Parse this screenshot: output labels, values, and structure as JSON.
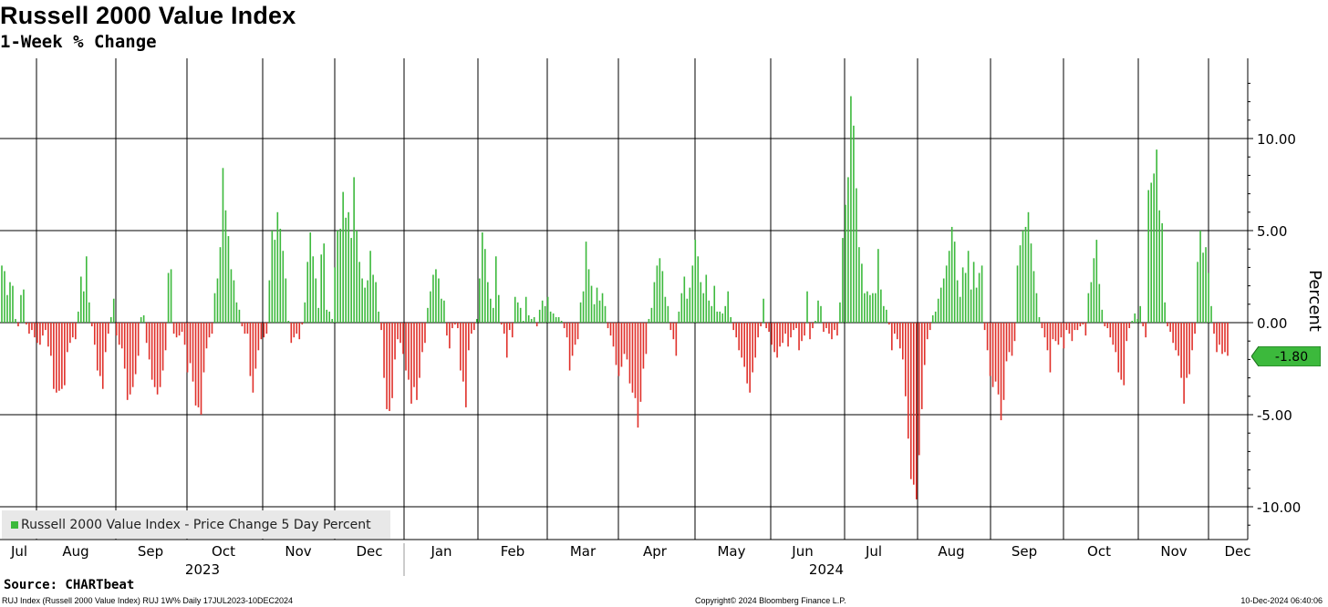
{
  "title": "Russell 2000 Value Index",
  "subtitle": "1-Week % Change",
  "source": "Source: CHARTbeat",
  "footer": {
    "left": "RUJ Index (Russell 2000 Value Index) RUJ 1W%  Daily 17JUL2023-10DEC2024",
    "middle": "Copyright© 2024 Bloomberg Finance L.P.",
    "right": "10-Dec-2024 06:40:06"
  },
  "legend_label": "Russell 2000 Value Index - Price Change 5 Day Percent",
  "last_value_label": "-1.80",
  "colors": {
    "positive": "#3cb93c",
    "negative": "#e0302a",
    "badge": "#3cb93c"
  },
  "chart_data": {
    "type": "bar",
    "ylabel": "Percent",
    "ylim": [
      -11.5,
      14
    ],
    "y_ticks": [
      "10.00",
      "5.00",
      "0.00",
      "-5.00",
      "-10.00"
    ],
    "grid": true,
    "legend_position": "bottom-left",
    "month_labels": [
      "Jul",
      "Aug",
      "Sep",
      "Oct",
      "Nov",
      "Dec",
      "Jan",
      "Feb",
      "Mar",
      "Apr",
      "May",
      "Jun",
      "Jul",
      "Aug",
      "Sep",
      "Oct",
      "Nov",
      "Dec"
    ],
    "year_labels": [
      "2023",
      "2024"
    ],
    "last_value": -1.8,
    "series": [
      {
        "name": "Russell 2000 Value Index - Price Change 5 Day Percent",
        "values": [
          3.1,
          2.8,
          1.5,
          2.2,
          2.0,
          0.2,
          -0.2,
          1.5,
          1.8,
          -0.1,
          -0.6,
          -0.4,
          -0.8,
          -1.1,
          -1.2,
          -0.7,
          -0.4,
          -1.3,
          -1.8,
          -3.6,
          -3.8,
          -3.7,
          -3.6,
          -3.4,
          -1.6,
          -1.1,
          -0.8,
          -0.9,
          0.6,
          2.5,
          1.7,
          3.6,
          1.1,
          -0.2,
          -1.2,
          -2.6,
          -2.9,
          -3.6,
          -1.6,
          -0.6,
          0.3,
          1.3,
          -0.7,
          -1.2,
          -1.4,
          -2.5,
          -4.2,
          -3.9,
          -3.5,
          -2.8,
          -1.8,
          0.3,
          0.4,
          -1.1,
          -2.0,
          -3.1,
          -3.5,
          -3.9,
          -3.5,
          -2.6,
          -1.5,
          2.7,
          2.9,
          -0.6,
          -0.8,
          -0.7,
          -0.5,
          -1.2,
          -2.7,
          -2.2,
          -3.2,
          -4.5,
          -4.6,
          -5.0,
          -2.7,
          -1.4,
          -0.8,
          -0.6,
          1.6,
          2.4,
          4.1,
          8.4,
          6.1,
          4.7,
          2.9,
          2.3,
          1.1,
          0.7,
          -0.2,
          -0.6,
          -0.6,
          -2.9,
          -3.8,
          -2.5,
          -1.5,
          -0.9,
          -0.8,
          -0.6,
          2.3,
          5.0,
          4.5,
          6.0,
          5.1,
          3.9,
          2.4,
          0.1,
          -1.1,
          -0.8,
          -0.6,
          -0.9,
          -0.1,
          1.1,
          3.3,
          4.9,
          3.6,
          2.4,
          0.8,
          3.7,
          4.3,
          0.7,
          0.6,
          0.2,
          3.0,
          5.0,
          5.1,
          7.1,
          5.7,
          6.0,
          4.6,
          7.9,
          5.0,
          3.3,
          2.4,
          1.9,
          2.3,
          3.9,
          2.6,
          2.2,
          0.6,
          -0.4,
          -3.0,
          -4.7,
          -4.8,
          -4.1,
          -2.0,
          -0.9,
          -1.1,
          -1.7,
          -2.6,
          -3.1,
          -4.4,
          -3.5,
          -4.2,
          -3.0,
          -1.6,
          -1.1,
          0.8,
          1.7,
          2.6,
          2.9,
          2.4,
          1.3,
          1.2,
          -0.7,
          -1.4,
          -0.3,
          -0.1,
          -0.3,
          -2.6,
          -3.2,
          -4.6,
          -1.5,
          -0.6,
          -0.4,
          0.2,
          2.4,
          4.9,
          4.0,
          2.2,
          1.3,
          0.8,
          3.6,
          1.5,
          -0.1,
          -0.6,
          -1.9,
          -0.4,
          -0.8,
          1.4,
          1.1,
          0.8,
          0.1,
          1.4,
          0.4,
          0.2,
          0.3,
          -0.2,
          0.7,
          1.2,
          0.9,
          1.4,
          0.6,
          0.5,
          0.3,
          0.3,
          0.1,
          -0.3,
          -0.8,
          -2.6,
          -1.8,
          -1.2,
          -0.9,
          1.1,
          1.7,
          4.4,
          2.9,
          2.0,
          1.0,
          1.9,
          1.2,
          1.6,
          0.9,
          -0.3,
          -0.7,
          -1.3,
          -2.3,
          -2.9,
          -2.4,
          -1.7,
          -2.0,
          -3.3,
          -3.8,
          -4.1,
          -5.7,
          -4.3,
          -2.5,
          -1.7,
          0.2,
          0.8,
          2.2,
          3.1,
          3.5,
          2.8,
          1.4,
          0.9,
          -0.4,
          -0.9,
          -1.8,
          0.6,
          1.6,
          2.5,
          1.3,
          1.9,
          3.1,
          4.5,
          3.6,
          2.2,
          1.6,
          2.6,
          1.2,
          0.9,
          2.0,
          0.6,
          0.6,
          0.5,
          0.9,
          1.7,
          0.3,
          -0.4,
          -0.8,
          -1.5,
          -1.9,
          -2.4,
          -3.3,
          -3.8,
          -2.7,
          -1.9,
          -0.8,
          -0.2,
          1.3,
          -0.3,
          -0.5,
          -1.2,
          -1.6,
          -1.9,
          -1.3,
          -1.1,
          -0.6,
          -1.3,
          -0.8,
          -0.4,
          -0.3,
          -1.5,
          -1.0,
          -0.7,
          1.7,
          -0.9,
          -0.3,
          0.1,
          1.2,
          0.9,
          -0.5,
          -0.3,
          -0.6,
          -0.9,
          -0.4,
          -0.7,
          1.1,
          4.6,
          6.4,
          7.9,
          12.3,
          10.7,
          7.3,
          4.1,
          3.2,
          1.6,
          1.7,
          1.5,
          1.6,
          1.6,
          4.0,
          1.8,
          0.9,
          0.7,
          -0.1,
          -1.5,
          -0.6,
          -0.9,
          -1.4,
          -2.0,
          -4.0,
          -6.3,
          -8.5,
          -8.8,
          -9.6,
          -7.2,
          -4.7,
          -2.3,
          -0.9,
          -0.4,
          0.4,
          0.6,
          1.3,
          1.9,
          2.4,
          3.1,
          3.9,
          5.2,
          4.4,
          2.3,
          1.4,
          3.0,
          2.7,
          3.9,
          1.8,
          3.3,
          1.9,
          2.7,
          3.1,
          -0.4,
          -1.5,
          -2.9,
          -3.5,
          -3.2,
          -3.9,
          -5.3,
          -4.2,
          -2.1,
          -1.6,
          -1.8,
          -1.0,
          3.1,
          4.2,
          5.0,
          5.2,
          6.0,
          4.3,
          2.8,
          1.6,
          0.3,
          -0.3,
          -0.8,
          -1.5,
          -2.7,
          -0.9,
          -1.0,
          -1.2,
          -0.8,
          -1.4,
          -0.4,
          -0.6,
          -1.0,
          -0.4,
          -0.4,
          -0.2,
          -0.1,
          -0.7,
          1.6,
          2.2,
          3.5,
          4.5,
          2.1,
          0.7,
          -0.2,
          -0.3,
          -0.8,
          -1.2,
          -1.6,
          -2.7,
          -3.1,
          -3.4,
          -1.0,
          -0.3,
          0.1,
          0.5,
          0.2,
          0.9,
          -0.2,
          -0.8,
          7.2,
          7.6,
          8.1,
          9.4,
          6.1,
          5.4,
          1.1,
          -0.2,
          -0.5,
          -1.1,
          -1.5,
          -1.8,
          -3.0,
          -4.4,
          -3.0,
          -2.8,
          -1.5,
          -0.6,
          3.3,
          5.0,
          3.8,
          4.1,
          2.7,
          0.9,
          -0.6,
          -1.6,
          -1.2,
          -1.7,
          -1.6,
          -1.8
        ]
      }
    ]
  }
}
